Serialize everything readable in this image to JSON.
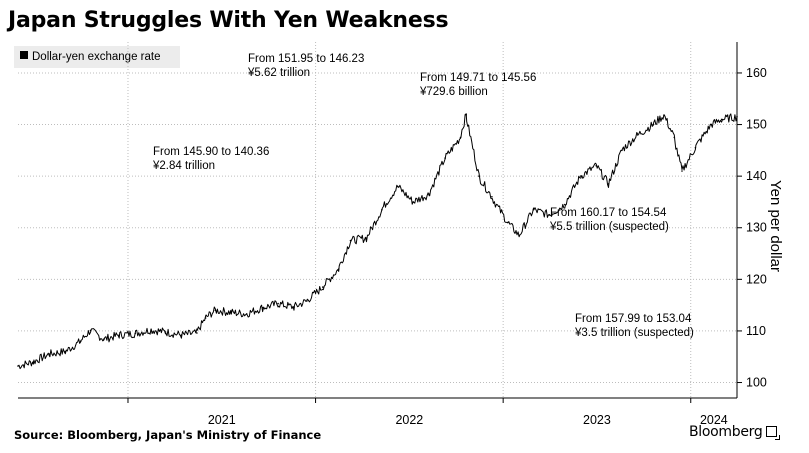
{
  "header": {
    "title": "Japan Struggles With Yen Weakness"
  },
  "footer": {
    "source": "Source: Bloomberg, Japan's Ministry of Finance",
    "brand": "Bloomberg"
  },
  "chart_data": {
    "type": "line",
    "title": "Japan Struggles With Yen Weakness",
    "ylabel": "Yen per dollar",
    "ylim": [
      97,
      166
    ],
    "yticks": [
      100,
      110,
      120,
      130,
      140,
      150,
      160
    ],
    "xlim": [
      "2020-06-01",
      "2024-03-31"
    ],
    "xticks": [
      {
        "date": "2021-01-01",
        "label": "2021"
      },
      {
        "date": "2022-01-01",
        "label": "2022"
      },
      {
        "date": "2023-01-01",
        "label": "2023"
      },
      {
        "date": "2024-01-01",
        "label": "2024"
      }
    ],
    "grid": "vertical-dotted-at-year-boundaries, horizontal-dotted-at-yticks",
    "legend": {
      "position": "top-left",
      "entries": [
        "Dollar-yen exchange rate"
      ]
    },
    "annotations": [
      {
        "line1": "From 151.95 to 146.23",
        "line2": "¥5.62 trillion"
      },
      {
        "line1": "From 149.71 to 145.56",
        "line2": "¥729.6 billion"
      },
      {
        "line1": "From 145.90 to 140.36",
        "line2": "¥2.84 trillion"
      },
      {
        "line1": "From 160.17 to 154.54",
        "line2": "¥5.5 trillion (suspected)"
      },
      {
        "line1": "From 157.99 to 153.04",
        "line2": "¥3.5 trillion (suspected)"
      }
    ],
    "series": [
      {
        "name": "Dollar-yen exchange rate",
        "color": "#000000",
        "points": [
          [
            "2020-06-01",
            103.2
          ],
          [
            "2020-07-01",
            104.0
          ],
          [
            "2020-08-01",
            105.5
          ],
          [
            "2020-09-01",
            106.0
          ],
          [
            "2020-10-01",
            108.0
          ],
          [
            "2020-10-20",
            110.1
          ],
          [
            "2020-11-15",
            108.4
          ],
          [
            "2020-12-15",
            109.2
          ],
          [
            "2021-01-15",
            109.5
          ],
          [
            "2021-02-15",
            110.2
          ],
          [
            "2021-03-15",
            109.8
          ],
          [
            "2021-04-15",
            109.2
          ],
          [
            "2021-05-15",
            109.6
          ],
          [
            "2021-06-01",
            112.5
          ],
          [
            "2021-06-20",
            114.0
          ],
          [
            "2021-07-20",
            113.6
          ],
          [
            "2021-08-20",
            113.3
          ],
          [
            "2021-09-20",
            114.5
          ],
          [
            "2021-10-20",
            115.3
          ],
          [
            "2021-11-20",
            114.6
          ],
          [
            "2021-12-15",
            115.8
          ],
          [
            "2022-01-15",
            118.5
          ],
          [
            "2022-02-15",
            122.0
          ],
          [
            "2022-03-10",
            127.5
          ],
          [
            "2022-04-10",
            128.0
          ],
          [
            "2022-05-10",
            133.5
          ],
          [
            "2022-06-10",
            138.0
          ],
          [
            "2022-07-10",
            135.0
          ],
          [
            "2022-08-10",
            136.5
          ],
          [
            "2022-09-10",
            143.5
          ],
          [
            "2022-10-10",
            147.5
          ],
          [
            "2022-10-21",
            151.9
          ],
          [
            "2022-11-15",
            140.0
          ],
          [
            "2022-12-10",
            136.0
          ],
          [
            "2023-01-10",
            131.0
          ],
          [
            "2023-02-01",
            128.5
          ],
          [
            "2023-03-01",
            133.5
          ],
          [
            "2023-04-01",
            132.5
          ],
          [
            "2023-05-01",
            134.5
          ],
          [
            "2023-06-01",
            140.0
          ],
          [
            "2023-07-01",
            142.0
          ],
          [
            "2023-07-25",
            138.5
          ],
          [
            "2023-08-20",
            145.0
          ],
          [
            "2023-09-20",
            148.0
          ],
          [
            "2023-10-20",
            150.0
          ],
          [
            "2023-11-10",
            151.8
          ],
          [
            "2023-11-30",
            147.5
          ],
          [
            "2023-12-15",
            141.0
          ],
          [
            "2024-01-10",
            145.5
          ],
          [
            "2024-02-10",
            150.0
          ],
          [
            "2024-03-01",
            151.0
          ],
          [
            "2024-03-31",
            151.5
          ]
        ]
      }
    ]
  }
}
